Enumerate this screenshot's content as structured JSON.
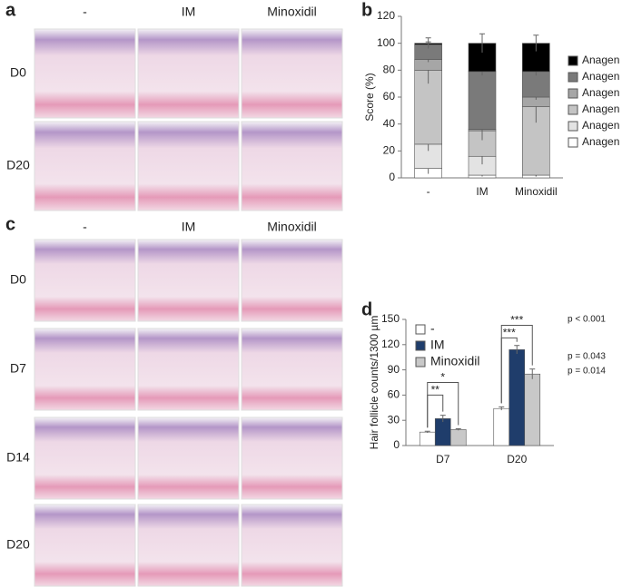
{
  "panel_labels": [
    "a",
    "b",
    "c",
    "d"
  ],
  "panel_a": {
    "columns": [
      "-",
      "IM",
      "Minoxidil"
    ],
    "rows": [
      "D0",
      "D20"
    ]
  },
  "panel_c": {
    "columns": [
      "-",
      "IM",
      "Minoxidil"
    ],
    "rows": [
      "D0",
      "D7",
      "D14",
      "D20"
    ]
  },
  "chart_data": [
    {
      "type": "stacked_bar",
      "ylabel": "Score (%)",
      "categories": [
        "-",
        "IM",
        "Minoxidil"
      ],
      "ylim": [
        0,
        120
      ],
      "yticks": [
        0,
        20,
        40,
        60,
        80,
        100,
        120
      ],
      "series": [
        {
          "name": "Anagen I",
          "color": "#ffffff",
          "values": [
            7,
            2,
            2
          ],
          "errors": [
            4,
            1,
            1
          ]
        },
        {
          "name": "Anagen II",
          "color": "#e3e3e3",
          "values": [
            18,
            14,
            0
          ],
          "errors": [
            5,
            6,
            1
          ]
        },
        {
          "name": "Anagen III",
          "color": "#c4c4c4",
          "values": [
            55,
            19,
            51
          ],
          "errors": [
            10,
            7,
            12
          ]
        },
        {
          "name": "Anagen IV",
          "color": "#a6a6a6",
          "values": [
            8,
            1,
            7
          ],
          "errors": [
            2,
            2,
            2
          ]
        },
        {
          "name": "Anagen V",
          "color": "#7a7a7a",
          "values": [
            11,
            43,
            19
          ],
          "errors": [
            2,
            3,
            3
          ]
        },
        {
          "name": "Anagen VI",
          "color": "#000000",
          "values": [
            1,
            21,
            21
          ],
          "errors": [
            4,
            7,
            6
          ]
        }
      ]
    },
    {
      "type": "grouped_bar",
      "ylabel": "Hair follicle counts/1300 µm",
      "categories": [
        "D7",
        "D20"
      ],
      "ylim": [
        0,
        150
      ],
      "yticks": [
        0,
        30,
        60,
        90,
        120,
        150
      ],
      "series": [
        {
          "name": "-",
          "color": "#ffffff",
          "values": [
            16,
            44
          ],
          "errors": [
            1,
            2
          ]
        },
        {
          "name": "IM",
          "color": "#1f3d6b",
          "values": [
            32,
            114
          ],
          "errors": [
            4,
            5
          ]
        },
        {
          "name": "Minoxidil",
          "color": "#c8c8c8",
          "values": [
            19,
            85
          ],
          "errors": [
            1,
            6
          ]
        }
      ],
      "significance": [
        "**",
        "*",
        "***",
        "***"
      ],
      "p_values": [
        "p < 0.001",
        "p = 0.043",
        "p = 0.014"
      ]
    }
  ]
}
